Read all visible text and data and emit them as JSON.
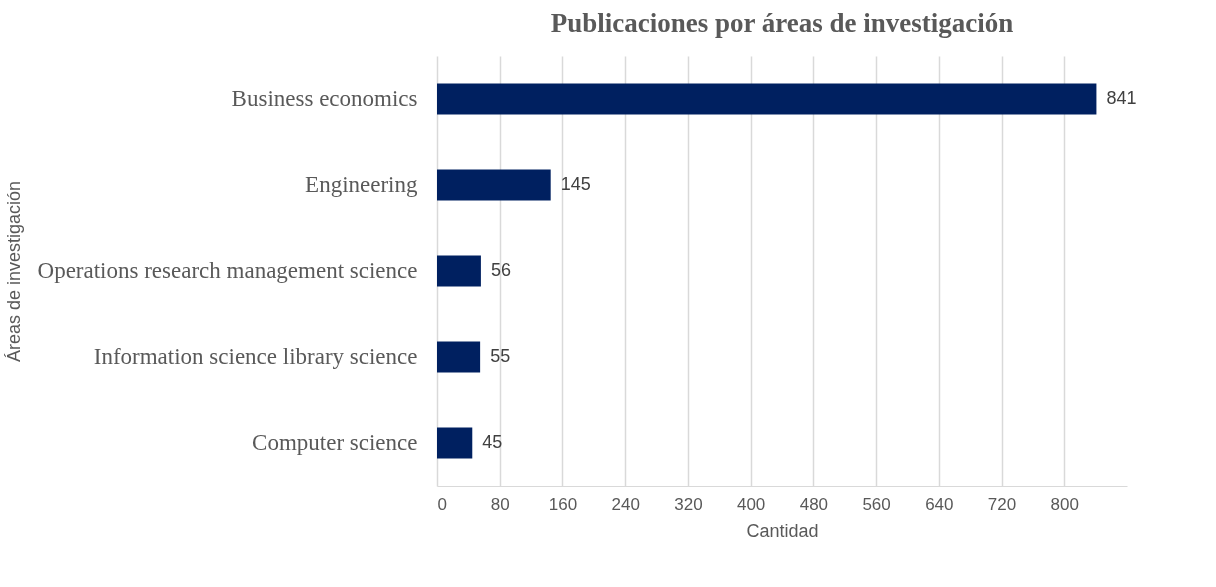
{
  "chart_data": {
    "type": "bar",
    "orientation": "horizontal",
    "title": "Publicaciones por áreas de investigación",
    "xlabel": "Cantidad",
    "ylabel": "Áreas de investigación",
    "categories": [
      "Business economics",
      "Engineering",
      "Operations research management science",
      "Information science library science",
      "Computer science"
    ],
    "values": [
      841,
      145,
      56,
      55,
      45
    ],
    "color": "#002060",
    "xlim": [
      0,
      880
    ],
    "xticks": [
      0,
      80,
      160,
      240,
      320,
      400,
      480,
      560,
      640,
      720,
      800
    ],
    "grid": "x",
    "data_labels": true
  }
}
